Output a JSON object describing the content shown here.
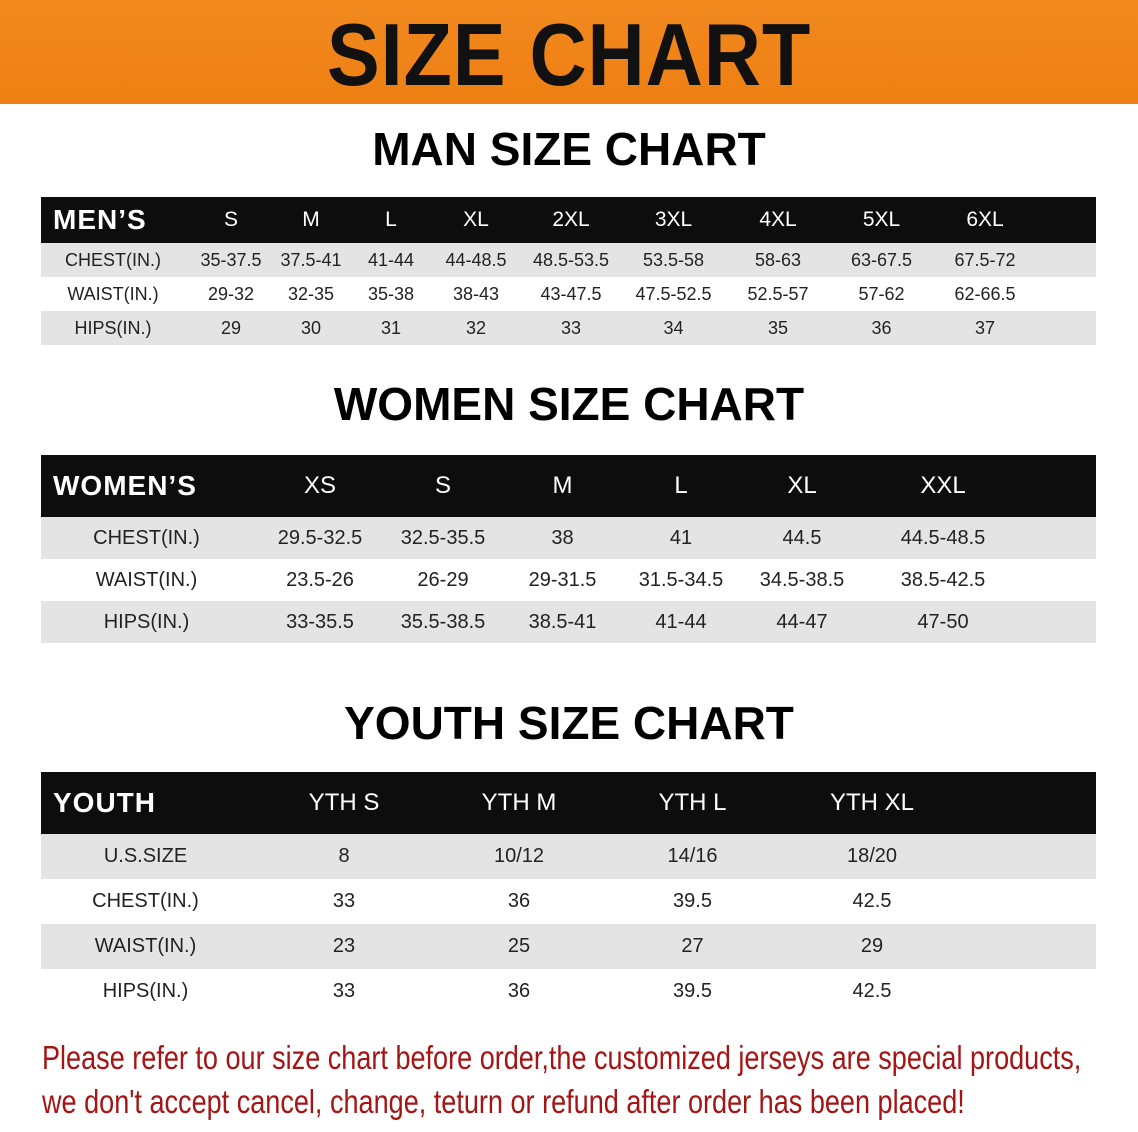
{
  "banner_title": "SIZE CHART",
  "men": {
    "title": "MAN SIZE CHART",
    "header": [
      "MEN’S",
      "S",
      "M",
      "L",
      "XL",
      "2XL",
      "3XL",
      "4XL",
      "5XL",
      "6XL"
    ],
    "rows": [
      [
        "CHEST(IN.)",
        "35-37.5",
        "37.5-41",
        "41-44",
        "44-48.5",
        "48.5-53.5",
        "53.5-58",
        "58-63",
        "63-67.5",
        "67.5-72"
      ],
      [
        "WAIST(IN.)",
        "29-32",
        "32-35",
        "35-38",
        "38-43",
        "43-47.5",
        "47.5-52.5",
        "52.5-57",
        "57-62",
        "62-66.5"
      ],
      [
        "HIPS(IN.)",
        "29",
        "30",
        "31",
        "32",
        "33",
        "34",
        "35",
        "36",
        "37"
      ]
    ],
    "shading": [
      "gray",
      "white",
      "gray"
    ]
  },
  "women": {
    "title": "WOMEN SIZE CHART",
    "header": [
      "WOMEN’S",
      "XS",
      "S",
      "M",
      "L",
      "XL",
      "XXL"
    ],
    "rows": [
      [
        "CHEST(IN.)",
        "29.5-32.5",
        "32.5-35.5",
        "38",
        "41",
        "44.5",
        "44.5-48.5"
      ],
      [
        "WAIST(IN.)",
        "23.5-26",
        "26-29",
        "29-31.5",
        "31.5-34.5",
        "34.5-38.5",
        "38.5-42.5"
      ],
      [
        "HIPS(IN.)",
        "33-35.5",
        "35.5-38.5",
        "38.5-41",
        "41-44",
        "44-47",
        "47-50"
      ]
    ],
    "shading": [
      "gray",
      "white",
      "gray"
    ]
  },
  "youth": {
    "title": "YOUTH SIZE CHART",
    "header": [
      "YOUTH",
      "YTH S",
      "YTH M",
      "YTH L",
      "YTH XL"
    ],
    "rows": [
      [
        "U.S.SIZE",
        "8",
        "10/12",
        "14/16",
        "18/20"
      ],
      [
        "CHEST(IN.)",
        "33",
        "36",
        "39.5",
        "42.5"
      ],
      [
        "WAIST(IN.)",
        "23",
        "25",
        "27",
        "29"
      ],
      [
        "HIPS(IN.)",
        "33",
        "36",
        "39.5",
        "42.5"
      ]
    ],
    "shading": [
      "gray",
      "white",
      "gray",
      "white"
    ]
  },
  "notice": [
    "Please refer to our size chart before order,the customized jerseys are special products,",
    "we don't accept cancel, change, teturn or refund after order has been placed!"
  ],
  "colors": {
    "banner": "#f08a1c",
    "header_row": "#0d0d0d",
    "notice_text": "#a51515",
    "row_shade": "#e4e4e4"
  }
}
